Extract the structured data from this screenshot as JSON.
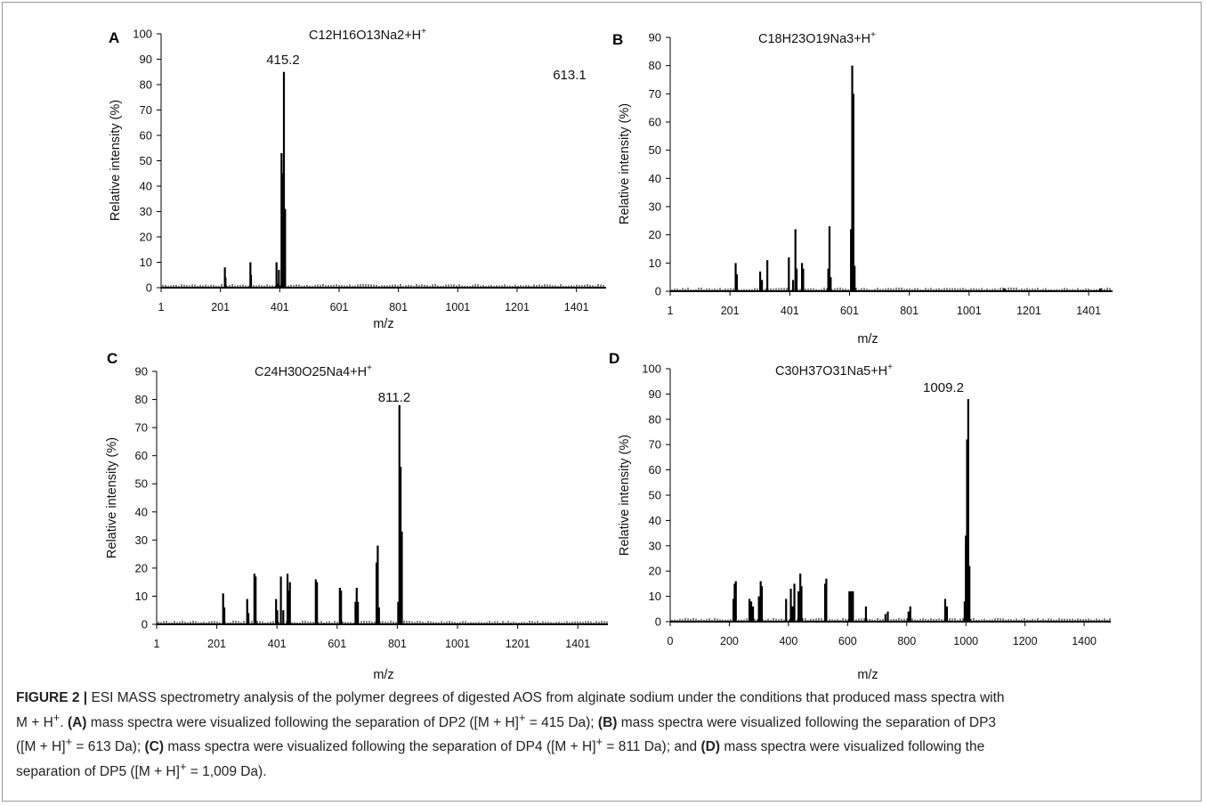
{
  "figure": {
    "xlabel": "m/z",
    "ylabel": "Relative intensity (%)"
  },
  "chart_data": [
    {
      "type": "bar",
      "panel": "A",
      "formula": "C12H16O13Na2+H",
      "superscript": "+",
      "peak_label": "415.2",
      "xlabel": "m/z",
      "ylabel": "Relative intensity (%)",
      "xlim": [
        1,
        1501
      ],
      "ylim": [
        0,
        100
      ],
      "xticks": [
        1,
        201,
        401,
        601,
        801,
        1001,
        1201,
        1401
      ],
      "yticks": [
        0,
        10,
        20,
        30,
        40,
        50,
        60,
        70,
        80,
        90,
        100
      ],
      "peaks": [
        {
          "x": 216,
          "y": 8
        },
        {
          "x": 218,
          "y": 4
        },
        {
          "x": 302,
          "y": 10
        },
        {
          "x": 304,
          "y": 5
        },
        {
          "x": 390,
          "y": 10
        },
        {
          "x": 398,
          "y": 7
        },
        {
          "x": 407,
          "y": 53
        },
        {
          "x": 411,
          "y": 45
        },
        {
          "x": 415,
          "y": 85
        },
        {
          "x": 419,
          "y": 31
        }
      ]
    },
    {
      "type": "bar",
      "panel": "B",
      "formula": "C18H23O19Na3+H",
      "superscript": "+",
      "peak_label": "613.1",
      "xlabel": "m/z",
      "ylabel": "Relative intensity (%)",
      "xlim": [
        1,
        1481
      ],
      "ylim": [
        0,
        90
      ],
      "xticks": [
        1,
        201,
        401,
        601,
        801,
        1001,
        1201,
        1401
      ],
      "yticks": [
        0,
        10,
        20,
        30,
        40,
        50,
        60,
        70,
        80,
        90
      ],
      "peaks": [
        {
          "x": 220,
          "y": 10
        },
        {
          "x": 224,
          "y": 6
        },
        {
          "x": 302,
          "y": 7
        },
        {
          "x": 308,
          "y": 4
        },
        {
          "x": 326,
          "y": 11
        },
        {
          "x": 398,
          "y": 12
        },
        {
          "x": 412,
          "y": 4
        },
        {
          "x": 420,
          "y": 22
        },
        {
          "x": 424,
          "y": 8
        },
        {
          "x": 442,
          "y": 10
        },
        {
          "x": 446,
          "y": 8
        },
        {
          "x": 530,
          "y": 8
        },
        {
          "x": 534,
          "y": 23
        },
        {
          "x": 538,
          "y": 5
        },
        {
          "x": 606,
          "y": 22
        },
        {
          "x": 610,
          "y": 80
        },
        {
          "x": 614,
          "y": 70
        },
        {
          "x": 618,
          "y": 9
        },
        {
          "x": 1120,
          "y": 1
        },
        {
          "x": 1440,
          "y": 1
        }
      ]
    },
    {
      "type": "bar",
      "panel": "C",
      "formula": "C24H30O25Na4+H",
      "superscript": "+",
      "peak_label": "811.2",
      "xlabel": "m/z",
      "ylabel": "Relative intensity (%)",
      "xlim": [
        1,
        1501
      ],
      "ylim": [
        0,
        90
      ],
      "xticks": [
        1,
        201,
        401,
        601,
        801,
        1001,
        1201,
        1401
      ],
      "yticks": [
        0,
        10,
        20,
        30,
        40,
        50,
        60,
        70,
        80,
        90
      ],
      "peaks": [
        {
          "x": 222,
          "y": 11
        },
        {
          "x": 226,
          "y": 6
        },
        {
          "x": 302,
          "y": 9
        },
        {
          "x": 306,
          "y": 4
        },
        {
          "x": 326,
          "y": 18
        },
        {
          "x": 330,
          "y": 17
        },
        {
          "x": 398,
          "y": 9
        },
        {
          "x": 402,
          "y": 5
        },
        {
          "x": 414,
          "y": 17
        },
        {
          "x": 422,
          "y": 5
        },
        {
          "x": 436,
          "y": 18
        },
        {
          "x": 440,
          "y": 12
        },
        {
          "x": 444,
          "y": 15
        },
        {
          "x": 530,
          "y": 16
        },
        {
          "x": 534,
          "y": 15
        },
        {
          "x": 610,
          "y": 13
        },
        {
          "x": 614,
          "y": 12
        },
        {
          "x": 662,
          "y": 8
        },
        {
          "x": 666,
          "y": 13
        },
        {
          "x": 670,
          "y": 8
        },
        {
          "x": 732,
          "y": 22
        },
        {
          "x": 736,
          "y": 28
        },
        {
          "x": 740,
          "y": 6
        },
        {
          "x": 804,
          "y": 8
        },
        {
          "x": 808,
          "y": 78
        },
        {
          "x": 812,
          "y": 56
        },
        {
          "x": 816,
          "y": 33
        }
      ]
    },
    {
      "type": "bar",
      "panel": "D",
      "formula": "C30H37O31Na5+H",
      "superscript": "+",
      "peak_label": "1009.2",
      "xlabel": "m/z",
      "ylabel": "Relative intensity (%)",
      "xlim": [
        0,
        1490
      ],
      "ylim": [
        0,
        100
      ],
      "xticks": [
        0,
        200,
        400,
        600,
        800,
        1000,
        1200,
        1400
      ],
      "yticks": [
        0,
        10,
        20,
        30,
        40,
        50,
        60,
        70,
        80,
        90,
        100
      ],
      "peaks": [
        {
          "x": 214,
          "y": 9
        },
        {
          "x": 218,
          "y": 15
        },
        {
          "x": 222,
          "y": 16
        },
        {
          "x": 268,
          "y": 9
        },
        {
          "x": 274,
          "y": 8
        },
        {
          "x": 280,
          "y": 6
        },
        {
          "x": 300,
          "y": 10
        },
        {
          "x": 306,
          "y": 16
        },
        {
          "x": 310,
          "y": 14
        },
        {
          "x": 392,
          "y": 9
        },
        {
          "x": 408,
          "y": 13
        },
        {
          "x": 414,
          "y": 6
        },
        {
          "x": 420,
          "y": 15
        },
        {
          "x": 434,
          "y": 12
        },
        {
          "x": 440,
          "y": 19
        },
        {
          "x": 444,
          "y": 14
        },
        {
          "x": 524,
          "y": 15
        },
        {
          "x": 528,
          "y": 17
        },
        {
          "x": 606,
          "y": 12
        },
        {
          "x": 612,
          "y": 12
        },
        {
          "x": 618,
          "y": 12
        },
        {
          "x": 662,
          "y": 6
        },
        {
          "x": 728,
          "y": 3
        },
        {
          "x": 736,
          "y": 4
        },
        {
          "x": 806,
          "y": 4
        },
        {
          "x": 812,
          "y": 6
        },
        {
          "x": 930,
          "y": 9
        },
        {
          "x": 936,
          "y": 6
        },
        {
          "x": 996,
          "y": 8
        },
        {
          "x": 1000,
          "y": 34
        },
        {
          "x": 1004,
          "y": 72
        },
        {
          "x": 1008,
          "y": 88
        },
        {
          "x": 1012,
          "y": 22
        }
      ]
    }
  ],
  "caption": {
    "l1": {
      "figure_label": "FIGURE 2 |",
      "text": " ESI MASS spectrometry analysis of the polymer degrees of digested AOS from alginate sodium under the conditions that produced mass spectra with"
    },
    "l2": {
      "p1": "M + H",
      "sup1": "+",
      "p2": ". ",
      "lbl_a": "(A)",
      "p3": " mass spectra were visualized following the separation of DP2 ([M + H]",
      "sup2": "+",
      "p4": " = 415 Da); ",
      "lbl_b": "(B)",
      "p5": " mass spectra were visualized following the separation of DP3"
    },
    "l3": {
      "p1": "([M + H]",
      "sup1": "+",
      "p2": " = 613 Da); ",
      "lbl_c": "(C)",
      "p3": " mass spectra were visualized following the separation of DP4 ([M + H]",
      "sup2": "+",
      "p4": " = 811 Da); and ",
      "lbl_d": "(D)",
      "p5": " mass spectra were visualized following the"
    },
    "l4": {
      "p1": "separation of DP5 ([M + H]",
      "sup1": "+",
      "p2": " = 1,009 Da)."
    }
  }
}
